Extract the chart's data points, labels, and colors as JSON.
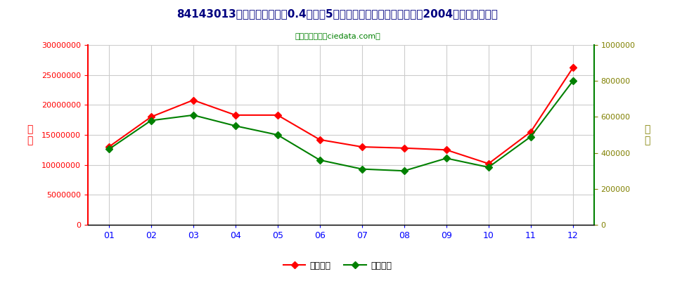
{
  "title": "84143013电动机额定功率在0.4千瓦至5千瓦之间的空气调节器用压缩机2004年出口月度走势",
  "subtitle": "进出口服务网（ciedata.com）",
  "months": [
    "01",
    "02",
    "03",
    "04",
    "05",
    "06",
    "07",
    "08",
    "09",
    "10",
    "11",
    "12"
  ],
  "export_usd": [
    13000000,
    18000000,
    20800000,
    18300000,
    18300000,
    14200000,
    13000000,
    12800000,
    12500000,
    10200000,
    15500000,
    26200000
  ],
  "export_qty": [
    420000,
    580000,
    610000,
    550000,
    500000,
    360000,
    310000,
    300000,
    370000,
    320000,
    490000,
    800000
  ],
  "left_color": "#FF0000",
  "right_color": "#008000",
  "right_tick_color": "#808000",
  "left_label": "金\n额",
  "right_label": "数\n量",
  "legend_usd": "出口美元",
  "legend_qty": "出口数量",
  "left_ylim": [
    0,
    30000000
  ],
  "right_ylim": [
    0,
    1000000
  ],
  "left_yticks": [
    0,
    5000000,
    10000000,
    15000000,
    20000000,
    25000000,
    30000000
  ],
  "right_yticks": [
    0,
    200000,
    400000,
    600000,
    800000,
    1000000
  ],
  "bg_color": "#FFFFFF",
  "plot_bg_color": "#FFFFFF",
  "grid_color": "#CCCCCC",
  "title_color": "#000080",
  "subtitle_color": "#008000",
  "left_tick_color": "#FF0000",
  "xtick_color": "#0000FF",
  "spine_color": "#000000"
}
